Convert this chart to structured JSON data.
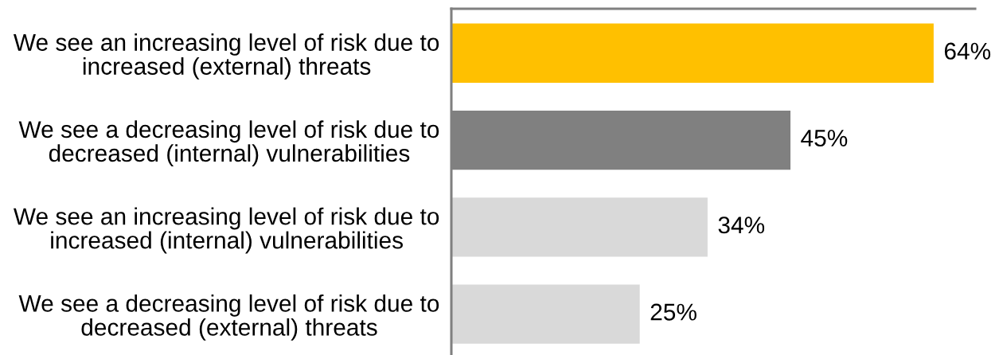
{
  "chart_data": {
    "type": "bar",
    "orientation": "horizontal",
    "categories": [
      "We see an increasing level of risk due to\nincreased (external) threats",
      "We see a decreasing level of risk due to\ndecreased (internal) vulnerabilities",
      "We see an increasing level of risk due to\nincreased (internal) vulnerabilities",
      "We see a decreasing level of risk due to\ndecreased (external) threats"
    ],
    "values": [
      64,
      45,
      34,
      25
    ],
    "colors": [
      "#ffc000",
      "#808080",
      "#d9d9d9",
      "#d9d9d9"
    ],
    "value_labels": [
      "64%",
      "45%",
      "34%",
      "25%"
    ],
    "tick_labels": "y"
  }
}
